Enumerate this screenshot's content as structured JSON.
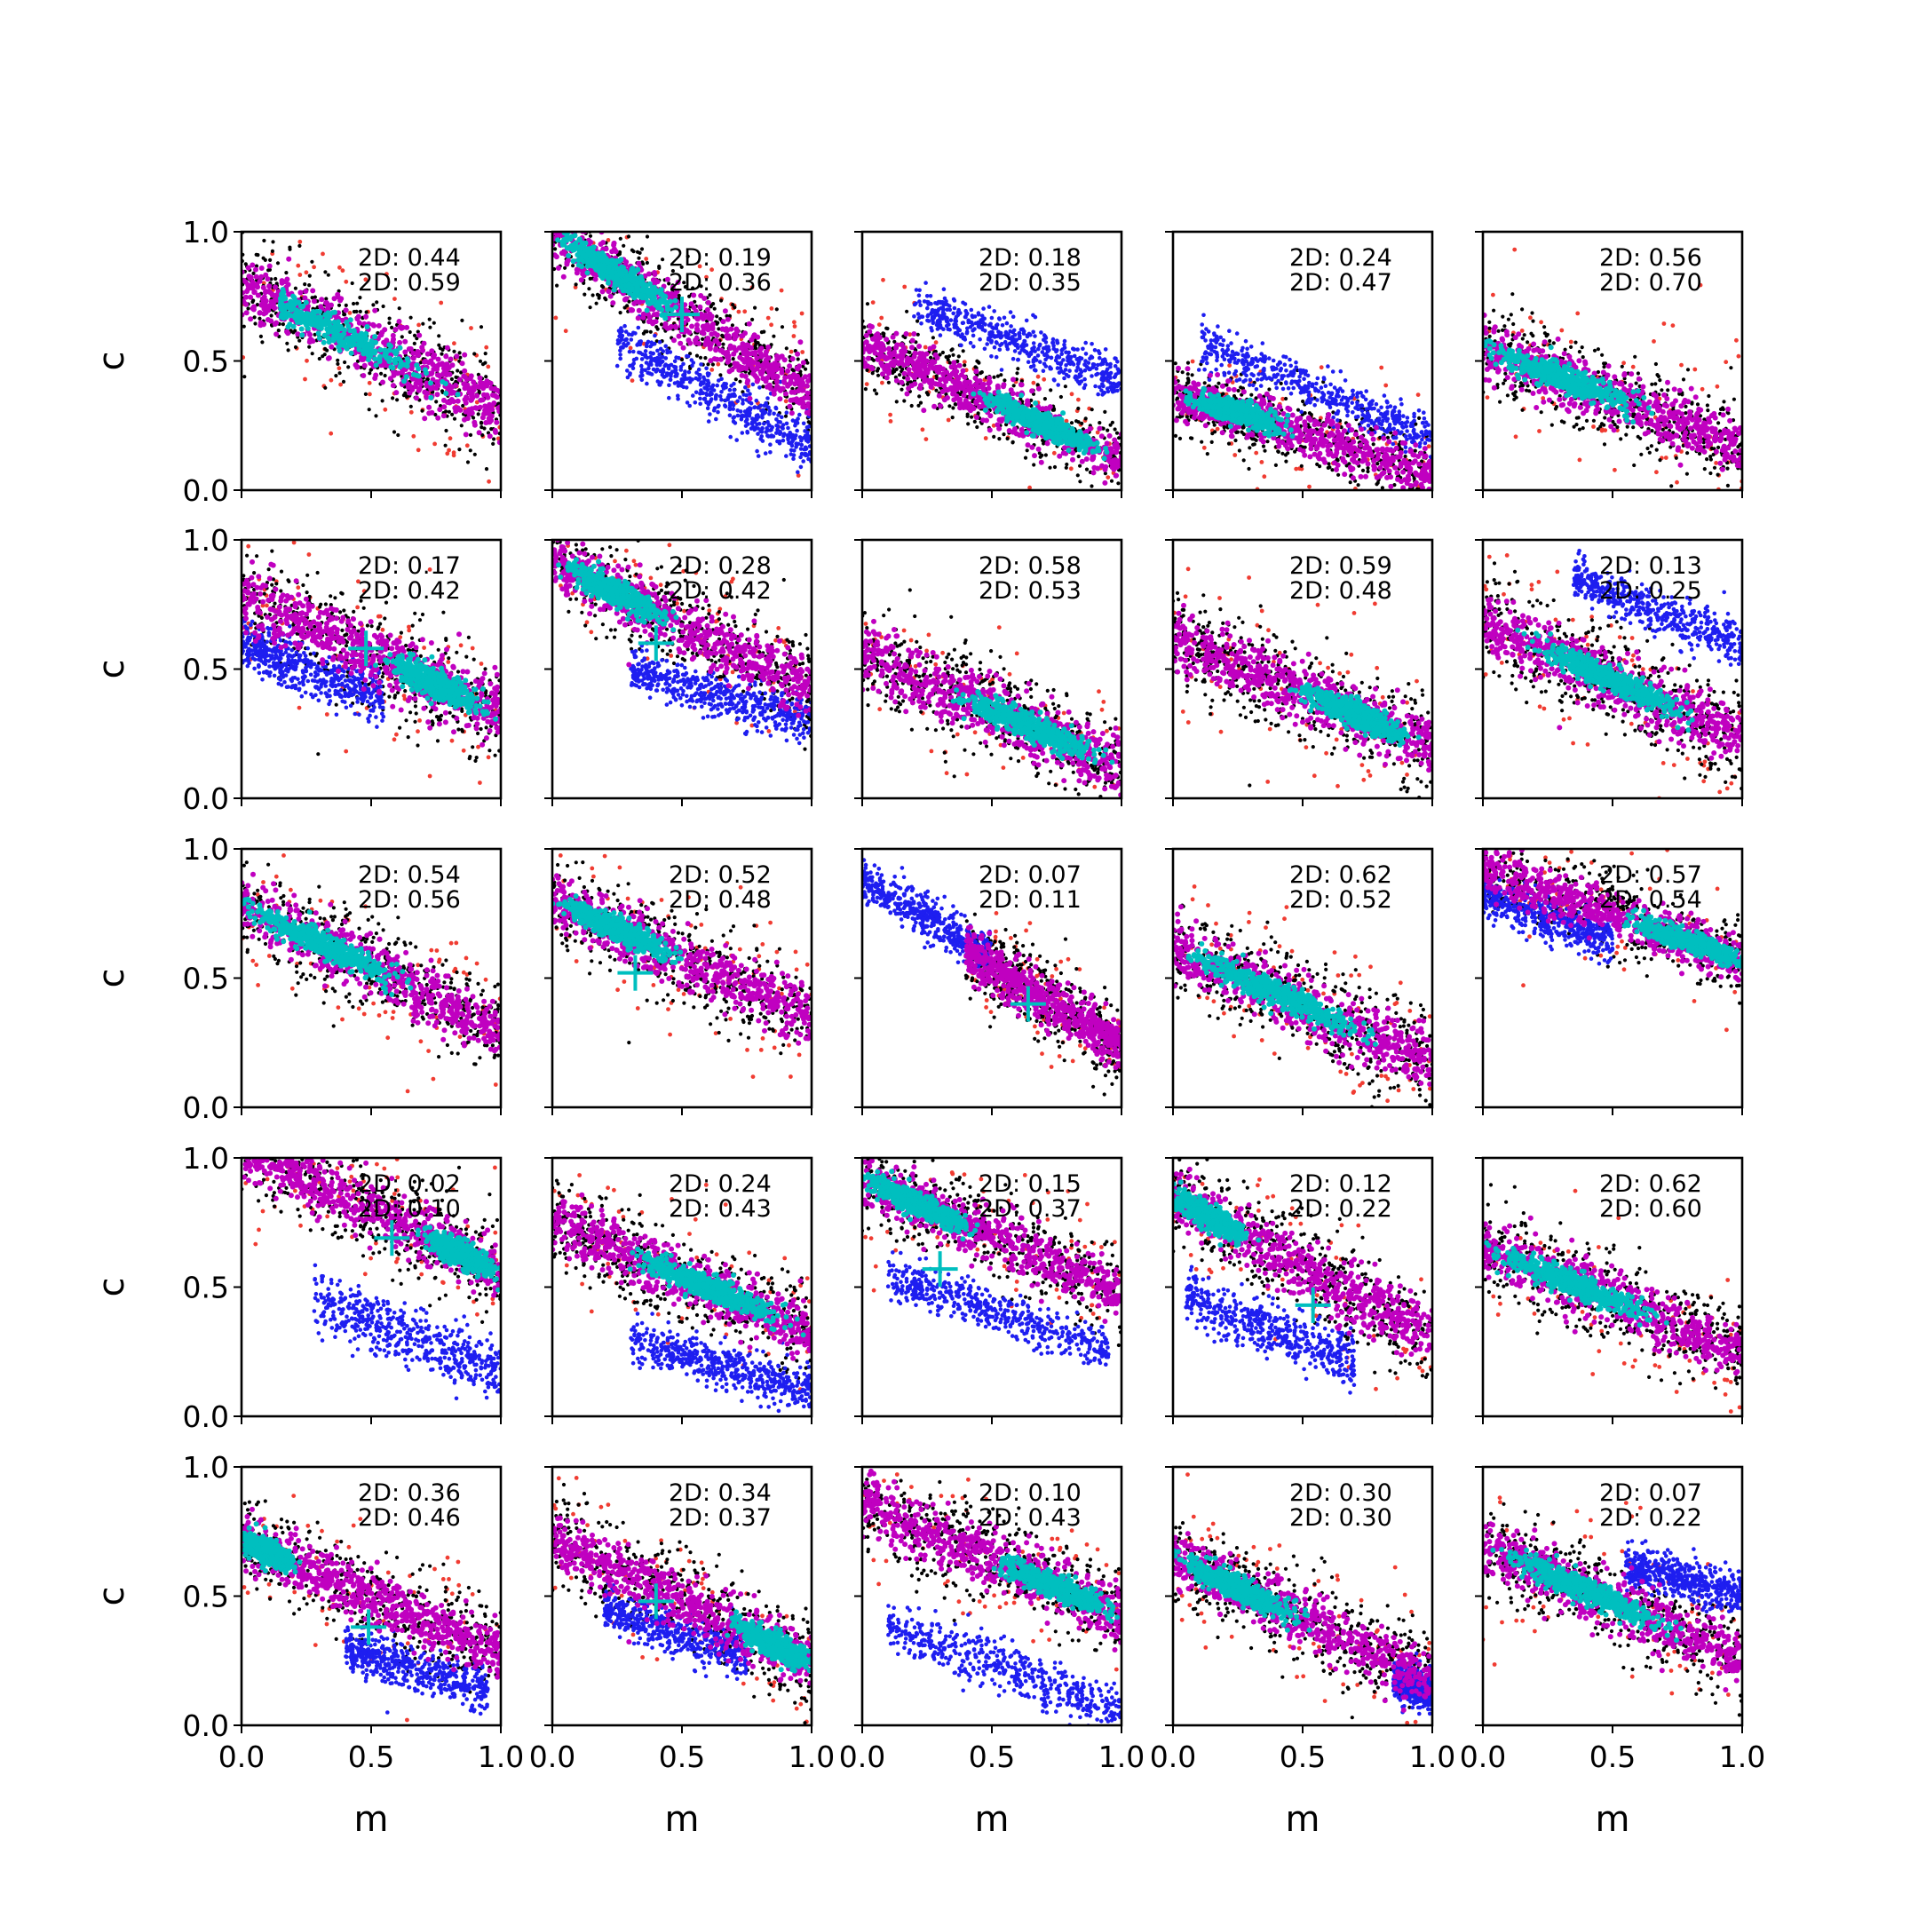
{
  "chart_data": {
    "type": "scatter",
    "layout": "5x5 grid of scatter panels",
    "xlabel": "m",
    "ylabel": "c",
    "xlim": [
      0,
      1
    ],
    "ylim": [
      0,
      1
    ],
    "xticks": [
      "0.0",
      "0.5",
      "1.0"
    ],
    "yticks": [
      "0.0",
      "0.5",
      "1.0"
    ],
    "grid": false,
    "legend": "none",
    "series_colors": {
      "outer_red": "#f03c32",
      "black": "#000000",
      "blue": "#1e1ef0",
      "magenta": "#c000c0",
      "cyan": "#00bfbf"
    },
    "marker_color": "#00bfbf",
    "annotation_prefix": "2D: ",
    "panels": [
      {
        "row": 0,
        "col": 0,
        "label1": "0.44",
        "label2": "0.59",
        "main": {
          "m0": 0.0,
          "c0": 0.79,
          "slope": -0.48,
          "w": 0.16
        },
        "core": {
          "m": [
            0.15,
            0.9
          ],
          "mid": 0.25
        },
        "blue": null,
        "marker": null
      },
      {
        "row": 0,
        "col": 1,
        "label1": "0.19",
        "label2": "0.36",
        "main": {
          "m0": 0.0,
          "c0": 0.99,
          "slope": -0.62,
          "w": 0.14
        },
        "core": {
          "m": [
            0.0,
            0.55
          ],
          "mid": 0.25
        },
        "blue": {
          "m0": 0.3,
          "c0": 0.55,
          "slope": -0.55,
          "w": 0.07,
          "m": [
            0.25,
            1.0
          ]
        },
        "marker": [
          0.5,
          0.68
        ]
      },
      {
        "row": 0,
        "col": 2,
        "label1": "0.18",
        "label2": "0.35",
        "main": {
          "m0": 0.0,
          "c0": 0.57,
          "slope": -0.45,
          "w": 0.12
        },
        "core": {
          "m": [
            0.4,
            1.0
          ],
          "mid": 0.7
        },
        "blue": {
          "m0": 0.2,
          "c0": 0.72,
          "slope": -0.38,
          "w": 0.06,
          "m": [
            0.2,
            1.0
          ]
        },
        "marker": null
      },
      {
        "row": 0,
        "col": 3,
        "label1": "0.24",
        "label2": "0.47",
        "main": {
          "m0": 0.0,
          "c0": 0.38,
          "slope": -0.32,
          "w": 0.12
        },
        "core": {
          "m": [
            0.0,
            0.5
          ],
          "mid": 0.25
        },
        "blue": {
          "m0": 0.15,
          "c0": 0.55,
          "slope": -0.42,
          "w": 0.06,
          "m": [
            0.1,
            1.0
          ]
        },
        "marker": null
      },
      {
        "row": 0,
        "col": 4,
        "label1": "0.56",
        "label2": "0.70",
        "main": {
          "m0": 0.0,
          "c0": 0.55,
          "slope": -0.38,
          "w": 0.14
        },
        "core": {
          "m": [
            0.0,
            0.7
          ],
          "mid": 0.3
        },
        "blue": null,
        "marker": null
      },
      {
        "row": 1,
        "col": 0,
        "label1": "0.17",
        "label2": "0.42",
        "main": {
          "m0": 0.0,
          "c0": 0.78,
          "slope": -0.45,
          "w": 0.16
        },
        "core": {
          "m": [
            0.5,
            1.0
          ],
          "mid": 0.75
        },
        "blue": {
          "m0": 0.0,
          "c0": 0.6,
          "slope": -0.4,
          "w": 0.07,
          "m": [
            0.0,
            0.55
          ]
        },
        "marker": [
          0.48,
          0.58
        ]
      },
      {
        "row": 1,
        "col": 1,
        "label1": "0.28",
        "label2": "0.42",
        "main": {
          "m0": 0.0,
          "c0": 0.92,
          "slope": -0.5,
          "w": 0.14
        },
        "core": {
          "m": [
            0.0,
            0.5
          ],
          "mid": 0.25
        },
        "blue": {
          "m0": 0.3,
          "c0": 0.5,
          "slope": -0.3,
          "w": 0.06,
          "m": [
            0.3,
            1.0
          ]
        },
        "marker": [
          0.4,
          0.6
        ]
      },
      {
        "row": 1,
        "col": 2,
        "label1": "0.58",
        "label2": "0.53",
        "main": {
          "m0": 0.0,
          "c0": 0.55,
          "slope": -0.42,
          "w": 0.15
        },
        "core": {
          "m": [
            0.35,
            1.0
          ],
          "mid": 0.65
        },
        "blue": null,
        "marker": null
      },
      {
        "row": 1,
        "col": 3,
        "label1": "0.59",
        "label2": "0.48",
        "main": {
          "m0": 0.0,
          "c0": 0.62,
          "slope": -0.42,
          "w": 0.15
        },
        "core": {
          "m": [
            0.4,
            1.0
          ],
          "mid": 0.7
        },
        "blue": null,
        "marker": null
      },
      {
        "row": 1,
        "col": 4,
        "label1": "0.13",
        "label2": "0.25",
        "main": {
          "m0": 0.0,
          "c0": 0.68,
          "slope": -0.45,
          "w": 0.15
        },
        "core": {
          "m": [
            0.1,
            0.9
          ],
          "mid": 0.5
        },
        "blue": {
          "m0": 0.35,
          "c0": 0.85,
          "slope": -0.4,
          "w": 0.06,
          "m": [
            0.35,
            1.0
          ]
        },
        "marker": null
      },
      {
        "row": 2,
        "col": 0,
        "label1": "0.54",
        "label2": "0.56",
        "main": {
          "m0": 0.0,
          "c0": 0.78,
          "slope": -0.48,
          "w": 0.14
        },
        "core": {
          "m": [
            0.0,
            0.7
          ],
          "mid": 0.3
        },
        "blue": null,
        "marker": null
      },
      {
        "row": 2,
        "col": 1,
        "label1": "0.52",
        "label2": "0.48",
        "main": {
          "m0": 0.0,
          "c0": 0.8,
          "slope": -0.45,
          "w": 0.14
        },
        "core": {
          "m": [
            0.0,
            0.55
          ],
          "mid": 0.25
        },
        "blue": null,
        "marker": [
          0.32,
          0.52
        ]
      },
      {
        "row": 2,
        "col": 2,
        "label1": "0.07",
        "label2": "0.11",
        "main": {
          "m0": 0.4,
          "c0": 0.6,
          "slope": -0.6,
          "w": 0.12
        },
        "core": null,
        "blue": {
          "m0": 0.0,
          "c0": 0.88,
          "slope": -0.6,
          "w": 0.06,
          "m": [
            0.0,
            0.5
          ]
        },
        "marker": [
          0.64,
          0.4
        ]
      },
      {
        "row": 2,
        "col": 3,
        "label1": "0.62",
        "label2": "0.52",
        "main": {
          "m0": 0.0,
          "c0": 0.62,
          "slope": -0.45,
          "w": 0.15
        },
        "core": {
          "m": [
            0.05,
            0.85
          ],
          "mid": 0.4
        },
        "blue": null,
        "marker": null
      },
      {
        "row": 2,
        "col": 4,
        "label1": "0.57",
        "label2": "0.54",
        "main": {
          "m0": 0.0,
          "c0": 0.92,
          "slope": -0.35,
          "w": 0.12
        },
        "core": {
          "m": [
            0.5,
            1.0
          ],
          "mid": 0.8
        },
        "blue": {
          "m0": 0.0,
          "c0": 0.82,
          "slope": -0.35,
          "w": 0.06,
          "m": [
            0.0,
            0.5
          ]
        },
        "marker": null
      },
      {
        "row": 3,
        "col": 0,
        "label1": "0.02",
        "label2": "0.10",
        "main": {
          "m0": 0.0,
          "c0": 1.05,
          "slope": -0.5,
          "w": 0.14
        },
        "core": {
          "m": [
            0.65,
            1.0
          ],
          "mid": 0.85
        },
        "blue": {
          "m0": 0.28,
          "c0": 0.45,
          "slope": -0.38,
          "w": 0.08,
          "m": [
            0.28,
            1.0
          ]
        },
        "marker": [
          0.58,
          0.69
        ]
      },
      {
        "row": 3,
        "col": 1,
        "label1": "0.24",
        "label2": "0.43",
        "main": {
          "m0": 0.0,
          "c0": 0.75,
          "slope": -0.42,
          "w": 0.14
        },
        "core": {
          "m": [
            0.3,
            1.0
          ],
          "mid": 0.6
        },
        "blue": {
          "m0": 0.3,
          "c0": 0.3,
          "slope": -0.3,
          "w": 0.06,
          "m": [
            0.3,
            1.0
          ]
        },
        "marker": null
      },
      {
        "row": 3,
        "col": 2,
        "label1": "0.15",
        "label2": "0.37",
        "main": {
          "m0": 0.0,
          "c0": 0.92,
          "slope": -0.45,
          "w": 0.13
        },
        "core": {
          "m": [
            0.0,
            0.5
          ],
          "mid": 0.2
        },
        "blue": {
          "m0": 0.1,
          "c0": 0.55,
          "slope": -0.35,
          "w": 0.06,
          "m": [
            0.1,
            0.95
          ]
        },
        "marker": [
          0.3,
          0.57
        ]
      },
      {
        "row": 3,
        "col": 3,
        "label1": "0.12",
        "label2": "0.22",
        "main": {
          "m0": 0.0,
          "c0": 0.85,
          "slope": -0.55,
          "w": 0.15
        },
        "core": {
          "m": [
            0.0,
            0.35
          ],
          "mid": 0.15
        },
        "blue": {
          "m0": 0.05,
          "c0": 0.45,
          "slope": -0.35,
          "w": 0.07,
          "m": [
            0.05,
            0.7
          ]
        },
        "marker": [
          0.54,
          0.43
        ]
      },
      {
        "row": 3,
        "col": 4,
        "label1": "0.62",
        "label2": "0.60",
        "main": {
          "m0": 0.0,
          "c0": 0.65,
          "slope": -0.4,
          "w": 0.14
        },
        "core": {
          "m": [
            0.0,
            0.75
          ],
          "mid": 0.35
        },
        "blue": null,
        "marker": null
      },
      {
        "row": 4,
        "col": 0,
        "label1": "0.36",
        "label2": "0.46",
        "main": {
          "m0": 0.0,
          "c0": 0.72,
          "slope": -0.45,
          "w": 0.14
        },
        "core": {
          "m": [
            0.0,
            0.25
          ],
          "mid": 0.1
        },
        "blue": {
          "m0": 0.4,
          "c0": 0.3,
          "slope": -0.3,
          "w": 0.06,
          "m": [
            0.4,
            0.95
          ]
        },
        "marker": [
          0.49,
          0.38
        ]
      },
      {
        "row": 4,
        "col": 1,
        "label1": "0.34",
        "label2": "0.37",
        "main": {
          "m0": 0.0,
          "c0": 0.72,
          "slope": -0.48,
          "w": 0.14
        },
        "core": {
          "m": [
            0.65,
            1.0
          ],
          "mid": 0.85
        },
        "blue": {
          "m0": 0.2,
          "c0": 0.45,
          "slope": -0.35,
          "w": 0.06,
          "m": [
            0.2,
            0.75
          ]
        },
        "marker": [
          0.4,
          0.48
        ]
      },
      {
        "row": 4,
        "col": 2,
        "label1": "0.10",
        "label2": "0.43",
        "main": {
          "m0": 0.0,
          "c0": 0.85,
          "slope": -0.42,
          "w": 0.14
        },
        "core": {
          "m": [
            0.45,
            1.0
          ],
          "mid": 0.75
        },
        "blue": {
          "m0": 0.1,
          "c0": 0.38,
          "slope": -0.35,
          "w": 0.07,
          "m": [
            0.1,
            1.0
          ]
        },
        "marker": null
      },
      {
        "row": 4,
        "col": 3,
        "label1": "0.30",
        "label2": "0.30",
        "main": {
          "m0": 0.0,
          "c0": 0.65,
          "slope": -0.48,
          "w": 0.14
        },
        "core": {
          "m": [
            0.0,
            0.55
          ],
          "mid": 0.25
        },
        "blue": {
          "m0": 0.85,
          "c0": 0.18,
          "slope": -0.3,
          "w": 0.05,
          "m": [
            0.85,
            1.0
          ]
        },
        "marker": null
      },
      {
        "row": 4,
        "col": 4,
        "label1": "0.07",
        "label2": "0.22",
        "main": {
          "m0": 0.0,
          "c0": 0.7,
          "slope": -0.45,
          "w": 0.14
        },
        "core": {
          "m": [
            0.0,
            0.8
          ],
          "mid": 0.4
        },
        "blue": {
          "m0": 0.55,
          "c0": 0.62,
          "slope": -0.25,
          "w": 0.06,
          "m": [
            0.55,
            1.0
          ]
        },
        "marker": null
      }
    ]
  }
}
